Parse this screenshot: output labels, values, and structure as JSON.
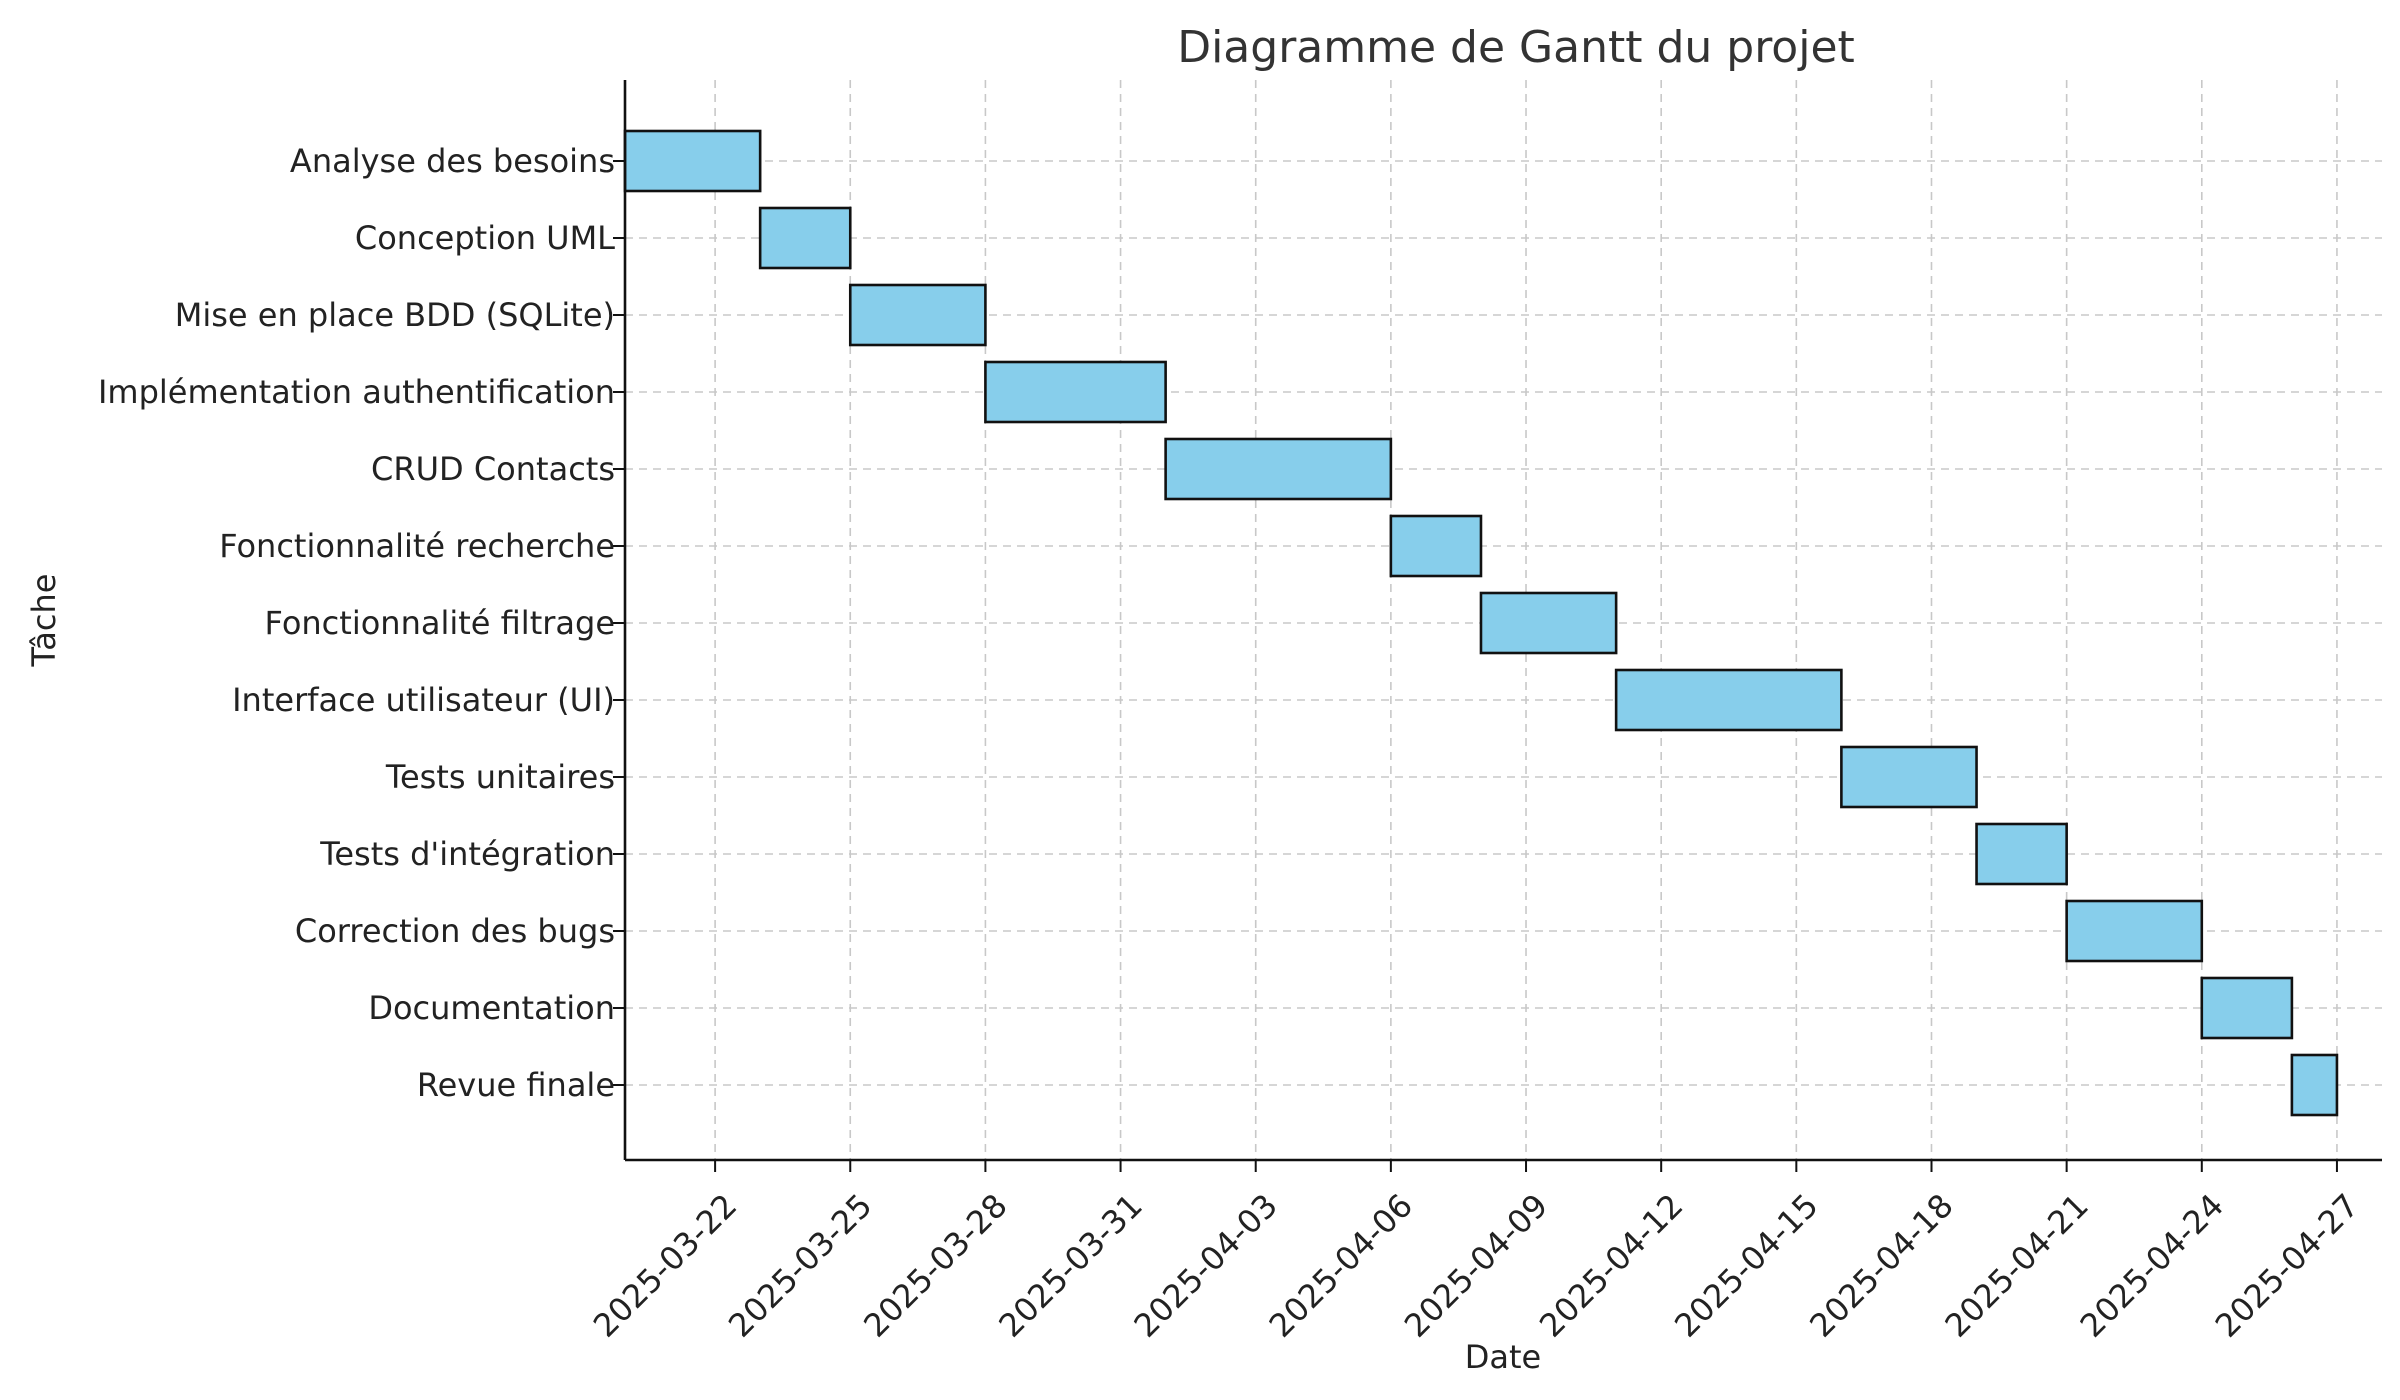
{
  "chart_data": {
    "type": "gantt",
    "title": "Diagramme de Gantt du projet",
    "xlabel": "Date",
    "ylabel": "Tâche",
    "x_range": [
      "2025-03-20",
      "2025-04-28"
    ],
    "x_ticks": [
      "2025-03-22",
      "2025-03-25",
      "2025-03-28",
      "2025-03-31",
      "2025-04-03",
      "2025-04-06",
      "2025-04-09",
      "2025-04-12",
      "2025-04-15",
      "2025-04-18",
      "2025-04-21",
      "2025-04-24",
      "2025-04-27"
    ],
    "grid": true,
    "bar_color": "#87ceeb",
    "edge_color": "#111111",
    "tasks": [
      {
        "name": "Analyse des besoins",
        "start": "2025-03-20",
        "end": "2025-03-23"
      },
      {
        "name": "Conception UML",
        "start": "2025-03-23",
        "end": "2025-03-25"
      },
      {
        "name": "Mise en place BDD (SQLite)",
        "start": "2025-03-25",
        "end": "2025-03-28"
      },
      {
        "name": "Implémentation authentification",
        "start": "2025-03-28",
        "end": "2025-04-01"
      },
      {
        "name": "CRUD Contacts",
        "start": "2025-04-01",
        "end": "2025-04-06"
      },
      {
        "name": "Fonctionnalité recherche",
        "start": "2025-04-06",
        "end": "2025-04-08"
      },
      {
        "name": "Fonctionnalité filtrage",
        "start": "2025-04-08",
        "end": "2025-04-11"
      },
      {
        "name": "Interface utilisateur (UI)",
        "start": "2025-04-11",
        "end": "2025-04-16"
      },
      {
        "name": "Tests unitaires",
        "start": "2025-04-16",
        "end": "2025-04-19"
      },
      {
        "name": "Tests d'intégration",
        "start": "2025-04-19",
        "end": "2025-04-21"
      },
      {
        "name": "Correction des bugs",
        "start": "2025-04-21",
        "end": "2025-04-24"
      },
      {
        "name": "Documentation",
        "start": "2025-04-24",
        "end": "2025-04-26"
      },
      {
        "name": "Revue finale",
        "start": "2025-04-26",
        "end": "2025-04-27"
      }
    ]
  }
}
